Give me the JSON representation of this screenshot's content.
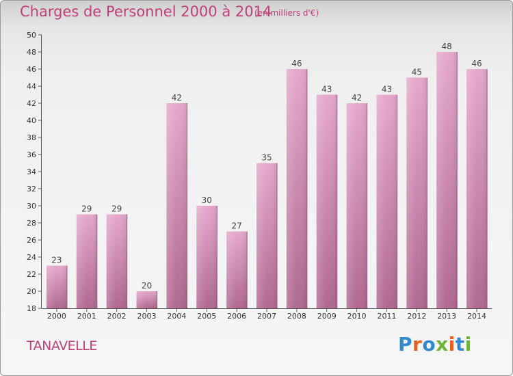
{
  "header": {
    "title": "Charges de Personnel 2000 à 2014",
    "unit_note": "(en milliers d'€)"
  },
  "footer": {
    "commune": "TANAVELLE",
    "logo": {
      "text": "Proxiti",
      "letters": [
        "P",
        "r",
        "o",
        "x",
        "i",
        "t",
        "i"
      ]
    }
  },
  "colors": {
    "title": "#c0407a",
    "bar_top": "#e5a8cc",
    "bar_bottom": "#b06890",
    "axis": "#555555"
  },
  "chart_data": {
    "type": "bar",
    "title": "Charges de Personnel 2000 à 2014",
    "subtitle": "(en milliers d'€)",
    "xlabel": "",
    "ylabel": "",
    "categories": [
      "2000",
      "2001",
      "2002",
      "2003",
      "2004",
      "2005",
      "2006",
      "2007",
      "2008",
      "2009",
      "2010",
      "2011",
      "2012",
      "2013",
      "2014"
    ],
    "values": [
      23,
      29,
      29,
      20,
      42,
      30,
      27,
      35,
      46,
      43,
      42,
      43,
      45,
      48,
      46
    ],
    "ylim": [
      18,
      50
    ],
    "yticks": [
      18,
      20,
      22,
      24,
      26,
      28,
      30,
      32,
      34,
      36,
      38,
      40,
      42,
      44,
      46,
      48,
      50
    ],
    "grid": false,
    "legend": "none"
  }
}
